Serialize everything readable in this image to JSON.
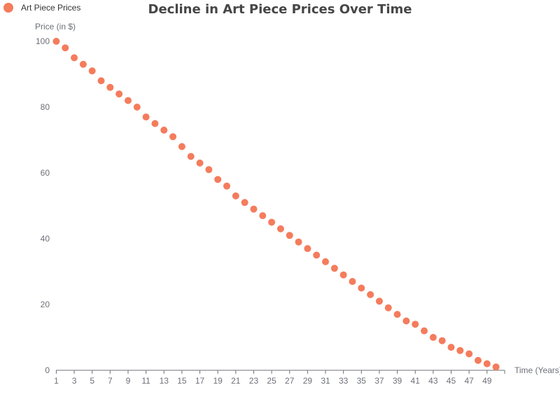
{
  "chart_data": {
    "type": "scatter",
    "title": "Decline in Art Piece Prices Over Time",
    "xlabel": "Time (Years)",
    "ylabel": "Price (in $)",
    "legend": {
      "position": "top-left",
      "entries": [
        "Art Piece Prices"
      ]
    },
    "grid": false,
    "xlim": [
      1,
      50
    ],
    "ylim": [
      0,
      100
    ],
    "yticks": [
      0,
      20,
      40,
      60,
      80,
      100
    ],
    "xticks": [
      1,
      3,
      5,
      7,
      9,
      11,
      13,
      15,
      17,
      19,
      21,
      23,
      25,
      27,
      29,
      31,
      33,
      35,
      37,
      39,
      41,
      43,
      45,
      47,
      49
    ],
    "series": [
      {
        "name": "Art Piece Prices",
        "color": "#f47c5c",
        "x": [
          1,
          2,
          3,
          4,
          5,
          6,
          7,
          8,
          9,
          10,
          11,
          12,
          13,
          14,
          15,
          16,
          17,
          18,
          19,
          20,
          21,
          22,
          23,
          24,
          25,
          26,
          27,
          28,
          29,
          30,
          31,
          32,
          33,
          34,
          35,
          36,
          37,
          38,
          39,
          40,
          41,
          42,
          43,
          44,
          45,
          46,
          47,
          48,
          49,
          50
        ],
        "values": [
          100,
          98,
          95,
          93,
          91,
          88,
          86,
          84,
          82,
          80,
          77,
          75,
          73,
          71,
          68,
          65,
          63,
          61,
          58,
          56,
          53,
          51,
          49,
          47,
          45,
          43,
          41,
          39,
          37,
          35,
          33,
          31,
          29,
          27,
          25,
          23,
          21,
          19,
          17,
          15,
          14,
          12,
          10,
          9,
          7,
          6,
          5,
          3,
          2,
          1
        ]
      }
    ]
  }
}
